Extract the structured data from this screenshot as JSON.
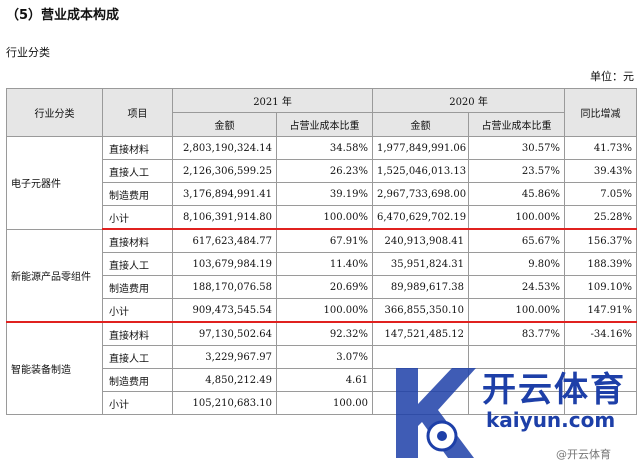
{
  "heading": "（5）营业成本构成",
  "subheading": "行业分类",
  "unit": "单位：元",
  "table": {
    "headers": {
      "category": "行业分类",
      "item": "项目",
      "year2021": "2021 年",
      "year2020": "2020 年",
      "yoy": "同比增减",
      "amount": "金额",
      "share": "占营业成本比重"
    },
    "groups": [
      {
        "name": "电子元器件",
        "rows": [
          {
            "item": "直接材料",
            "a2021": "2,803,190,324.14",
            "p2021": "34.58%",
            "a2020": "1,977,849,991.06",
            "p2020": "30.57%",
            "yoy": "41.73%"
          },
          {
            "item": "直接人工",
            "a2021": "2,126,306,599.25",
            "p2021": "26.23%",
            "a2020": "1,525,046,013.13",
            "p2020": "23.57%",
            "yoy": "39.43%"
          },
          {
            "item": "制造费用",
            "a2021": "3,176,894,991.41",
            "p2021": "39.19%",
            "a2020": "2,967,733,698.00",
            "p2020": "45.86%",
            "yoy": "7.05%"
          },
          {
            "item": "小计",
            "a2021": "8,106,391,914.80",
            "p2021": "100.00%",
            "a2020": "6,470,629,702.19",
            "p2020": "100.00%",
            "yoy": "25.28%"
          }
        ]
      },
      {
        "name": "新能源产品零组件",
        "rows": [
          {
            "item": "直接材料",
            "a2021": "617,623,484.77",
            "p2021": "67.91%",
            "a2020": "240,913,908.41",
            "p2020": "65.67%",
            "yoy": "156.37%"
          },
          {
            "item": "直接人工",
            "a2021": "103,679,984.19",
            "p2021": "11.40%",
            "a2020": "35,951,824.31",
            "p2020": "9.80%",
            "yoy": "188.39%"
          },
          {
            "item": "制造费用",
            "a2021": "188,170,076.58",
            "p2021": "20.69%",
            "a2020": "89,989,617.38",
            "p2020": "24.53%",
            "yoy": "109.10%"
          },
          {
            "item": "小计",
            "a2021": "909,473,545.54",
            "p2021": "100.00%",
            "a2020": "366,855,350.10",
            "p2020": "100.00%",
            "yoy": "147.91%"
          }
        ]
      },
      {
        "name": "智能装备制造",
        "rows": [
          {
            "item": "直接材料",
            "a2021": "97,130,502.64",
            "p2021": "92.32%",
            "a2020": "147,521,485.12",
            "p2020": "83.77%",
            "yoy": "-34.16%"
          },
          {
            "item": "直接人工",
            "a2021": "3,229,967.97",
            "p2021": "3.07%",
            "a2020": "",
            "p2020": "",
            "yoy": ""
          },
          {
            "item": "制造费用",
            "a2021": "4,850,212.49",
            "p2021": "4.61",
            "a2020": "",
            "p2020": "",
            "yoy": ""
          },
          {
            "item": "小计",
            "a2021": "105,210,683.10",
            "p2021": "100.00",
            "a2020": "",
            "p2020": "",
            "yoy": ""
          }
        ]
      }
    ]
  },
  "watermark": {
    "logo_text": "开云体育",
    "url": "kaiyun.com",
    "small": "@开云体育"
  }
}
